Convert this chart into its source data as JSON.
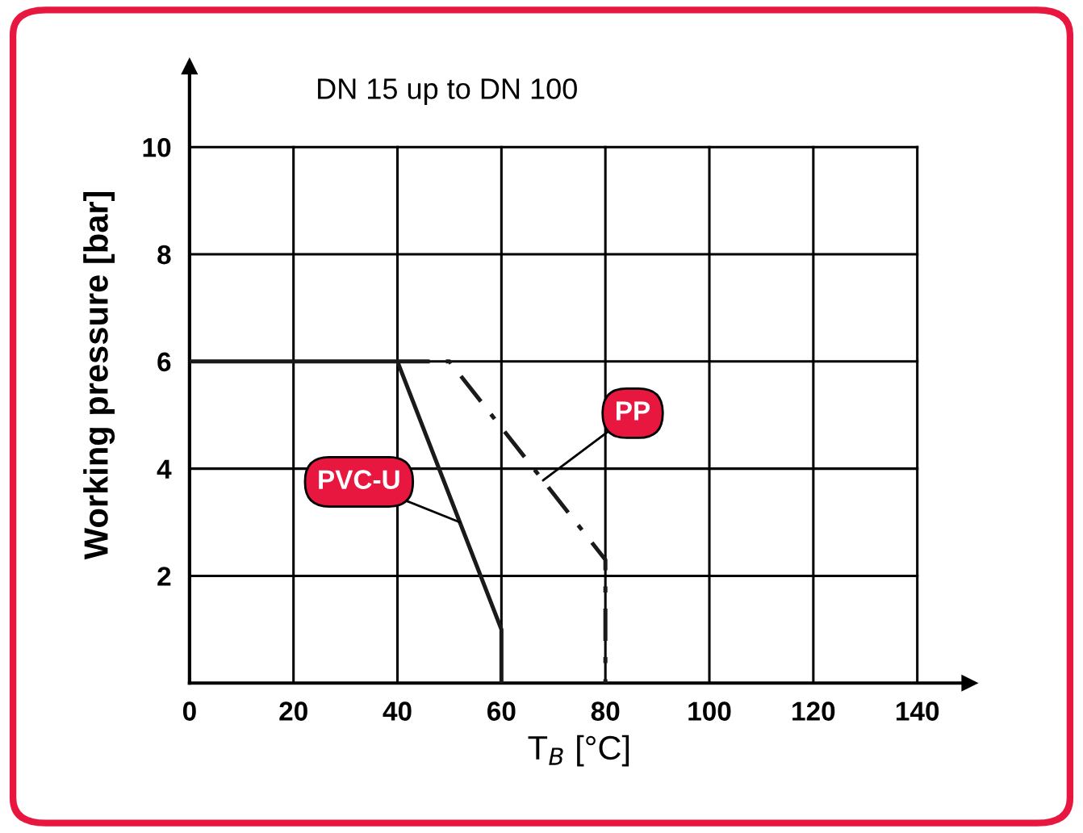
{
  "chart_data": {
    "type": "line",
    "title": "DN 15 up to DN 100",
    "xlabel": "T$_{B}$ [°C]",
    "ylabel": "Working pressure [bar]",
    "series": [
      {
        "name": "PVC-U",
        "color": "#1a1a1a",
        "x": [
          0,
          40,
          60,
          60
        ],
        "values": [
          6,
          6,
          1,
          0
        ],
        "line_style": "solid"
      },
      {
        "name": "PP",
        "color": "#1a1a1a",
        "x": [
          40,
          50,
          80,
          80
        ],
        "values": [
          6,
          6,
          2.3,
          0
        ],
        "line_style": "dashdot"
      }
    ],
    "xlim": [
      0,
      150
    ],
    "ylim": [
      0,
      11.5
    ],
    "xticks": [
      0,
      20,
      40,
      60,
      80,
      100,
      120,
      140
    ],
    "yticks": [
      2,
      4,
      6,
      8,
      10
    ],
    "grid": true,
    "legend": false,
    "marker": "none"
  }
}
